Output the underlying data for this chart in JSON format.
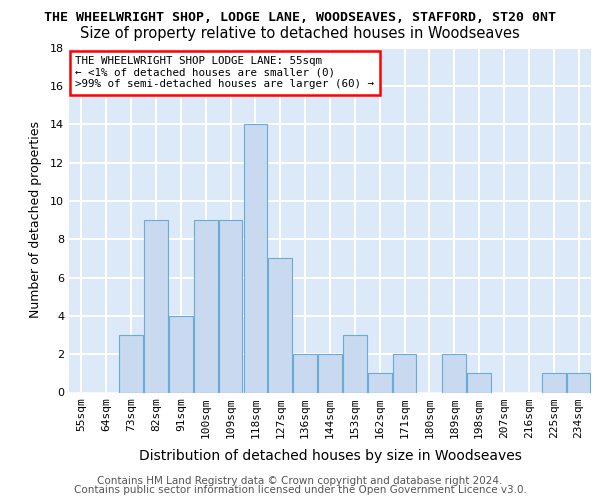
{
  "title_line1": "THE WHEELWRIGHT SHOP, LODGE LANE, WOODSEAVES, STAFFORD, ST20 0NT",
  "title_line2": "Size of property relative to detached houses in Woodseaves",
  "xlabel": "Distribution of detached houses by size in Woodseaves",
  "ylabel": "Number of detached properties",
  "categories": [
    "55sqm",
    "64sqm",
    "73sqm",
    "82sqm",
    "91sqm",
    "100sqm",
    "109sqm",
    "118sqm",
    "127sqm",
    "136sqm",
    "144sqm",
    "153sqm",
    "162sqm",
    "171sqm",
    "180sqm",
    "189sqm",
    "198sqm",
    "207sqm",
    "216sqm",
    "225sqm",
    "234sqm"
  ],
  "values": [
    0,
    0,
    3,
    9,
    4,
    9,
    9,
    14,
    7,
    2,
    2,
    3,
    1,
    2,
    0,
    2,
    1,
    0,
    0,
    1,
    1
  ],
  "bar_color": "#c8d9f0",
  "bar_edge_color": "#6aacd8",
  "annotation_box_text": "THE WHEELWRIGHT SHOP LODGE LANE: 55sqm\n← <1% of detached houses are smaller (0)\n>99% of semi-detached houses are larger (60) →",
  "footer_line1": "Contains HM Land Registry data © Crown copyright and database right 2024.",
  "footer_line2": "Contains public sector information licensed under the Open Government Licence v3.0.",
  "ylim": [
    0,
    18
  ],
  "yticks": [
    0,
    2,
    4,
    6,
    8,
    10,
    12,
    14,
    16,
    18
  ],
  "fig_background": "#ffffff",
  "plot_background": "#dce9f8",
  "grid_color": "#ffffff",
  "title1_fontsize": 9.5,
  "title2_fontsize": 10.5,
  "tick_fontsize": 8,
  "ylabel_fontsize": 9,
  "xlabel_fontsize": 10,
  "ann_fontsize": 7.8,
  "footer_fontsize": 7.5
}
